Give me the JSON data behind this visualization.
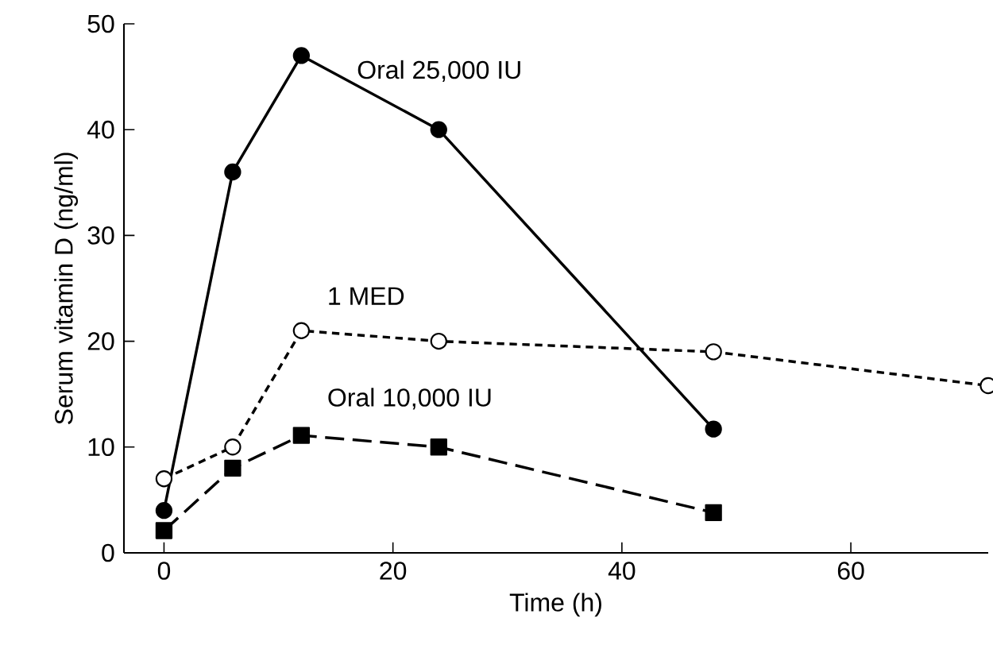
{
  "chart_data": {
    "type": "line",
    "xlabel": "Time (h)",
    "ylabel": "Serum vitamin D (ng/ml)",
    "xlim": [
      -3.5,
      72
    ],
    "ylim": [
      0,
      50
    ],
    "xticks": [
      0,
      20,
      40,
      60
    ],
    "yticks": [
      0,
      10,
      20,
      30,
      40,
      50
    ],
    "grid": false,
    "legend": false,
    "series": [
      {
        "name": "Oral 25,000 IU",
        "color": "#000000",
        "marker": "circle",
        "line_style": "solid",
        "x": [
          0,
          6,
          12,
          24,
          48
        ],
        "values": [
          4,
          36,
          47,
          40,
          11.7
        ]
      },
      {
        "name": "1 MED",
        "color": "#000000",
        "marker": "circle",
        "line_style": "dotted",
        "x": [
          0,
          6,
          12,
          24,
          48,
          72
        ],
        "values": [
          7,
          10,
          21,
          20,
          19,
          15.8
        ]
      },
      {
        "name": "Oral 10,000 IU",
        "color": "#000000",
        "marker": "square",
        "line_style": "dashed",
        "x": [
          0,
          6,
          12,
          24,
          48
        ],
        "values": [
          2.1,
          8,
          11.1,
          10,
          3.8
        ]
      }
    ]
  }
}
